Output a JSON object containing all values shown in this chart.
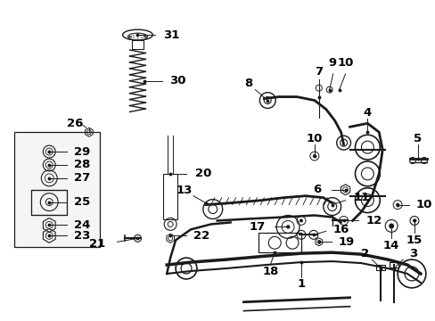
{
  "background_color": "#ffffff",
  "figure_size": [
    4.89,
    3.6
  ],
  "dpi": 100,
  "line_color": "#1a1a1a",
  "text_color": "#000000",
  "font_size": 8.5,
  "label_font_size": 9.5
}
